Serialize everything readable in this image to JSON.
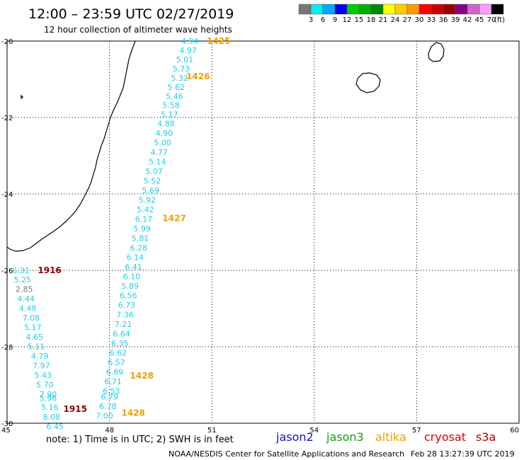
{
  "title": "12:00 – 23:59 UTC 02/27/2019",
  "subtitle": "12 hour collection of altimeter wave heights",
  "note": "note:  1) Time is in UTC;  2) SWH is in feet",
  "credit": "NOAA/NESDIS Center for Satellite Applications and Research",
  "timestamp": "Feb 28 13:27:39 UTC 2019",
  "satellites": [
    {
      "name": "jason2",
      "color": "#1010c8"
    },
    {
      "name": "jason3",
      "color": "#10a010"
    },
    {
      "name": "altika",
      "color": "#f0a000"
    },
    {
      "name": "cryosat",
      "color": "#e00000"
    },
    {
      "name": "s3a",
      "color": "#b00000"
    }
  ],
  "colorbar": {
    "labels": [
      "3",
      "6",
      "9",
      "12",
      "15",
      "18",
      "21",
      "24",
      "27",
      "30",
      "33",
      "36",
      "39",
      "42",
      "45",
      "70"
    ],
    "unit": "(ft)",
    "colors": [
      "#777777",
      "#00eeee",
      "#00aaff",
      "#0000ee",
      "#00cc00",
      "#00b000",
      "#008800",
      "#ffff00",
      "#ffcc00",
      "#ff9900",
      "#ff0000",
      "#cc0000",
      "#990000",
      "#880088",
      "#cc66cc",
      "#ff99ff",
      "#000000"
    ]
  },
  "chart_data": {
    "type": "scatter",
    "xlim": [
      45,
      60
    ],
    "ylim": [
      -30,
      -20
    ],
    "x_ticks": [
      "45",
      "48",
      "51",
      "54",
      "57",
      "60"
    ],
    "y_ticks": [
      "-20",
      "-22",
      "-24",
      "-26",
      "-28",
      "-30"
    ],
    "grid": true,
    "label_colors": {
      "low": "#22ccee",
      "mid": "#777777"
    },
    "track_labels": [
      {
        "text": "1425",
        "lon": 50.85,
        "lat": -20.0,
        "color": "#f0a000"
      },
      {
        "text": "1426",
        "lon": 50.25,
        "lat": -20.93,
        "color": "#f0a000"
      },
      {
        "text": "1427",
        "lon": 49.55,
        "lat": -24.64,
        "color": "#f0a000"
      },
      {
        "text": "1428",
        "lon": 48.6,
        "lat": -28.76,
        "color": "#f0a000"
      },
      {
        "text": "1428",
        "lon": 48.35,
        "lat": -29.73,
        "color": "#f0a000"
      },
      {
        "text": "1916",
        "lon": 45.9,
        "lat": -26.0,
        "color": "#8b0000"
      },
      {
        "text": "1915",
        "lon": 46.65,
        "lat": -29.63,
        "color": "#8b0000"
      }
    ],
    "values": [
      {
        "text": "4.94",
        "lon": 50.1,
        "lat": -20.0,
        "cls": "low"
      },
      {
        "text": "4.97",
        "lon": 50.05,
        "lat": -20.24,
        "cls": "low"
      },
      {
        "text": "5.01",
        "lon": 49.95,
        "lat": -20.48,
        "cls": "low"
      },
      {
        "text": "5.73",
        "lon": 49.85,
        "lat": -20.72,
        "cls": "low"
      },
      {
        "text": "5.32",
        "lon": 49.8,
        "lat": -20.96,
        "cls": "low"
      },
      {
        "text": "5.62",
        "lon": 49.7,
        "lat": -21.2,
        "cls": "low"
      },
      {
        "text": "5.46",
        "lon": 49.65,
        "lat": -21.44,
        "cls": "low"
      },
      {
        "text": "5.58",
        "lon": 49.55,
        "lat": -21.68,
        "cls": "low"
      },
      {
        "text": "5.17",
        "lon": 49.5,
        "lat": -21.92,
        "cls": "low"
      },
      {
        "text": "4.88",
        "lon": 49.4,
        "lat": -22.16,
        "cls": "low"
      },
      {
        "text": "4.90",
        "lon": 49.35,
        "lat": -22.41,
        "cls": "low"
      },
      {
        "text": "5.00",
        "lon": 49.3,
        "lat": -22.66,
        "cls": "low"
      },
      {
        "text": "4.77",
        "lon": 49.2,
        "lat": -22.91,
        "cls": "low"
      },
      {
        "text": "5.14",
        "lon": 49.15,
        "lat": -23.16,
        "cls": "low"
      },
      {
        "text": "5.07",
        "lon": 49.05,
        "lat": -23.41,
        "cls": "low"
      },
      {
        "text": "5.52",
        "lon": 49.0,
        "lat": -23.66,
        "cls": "low"
      },
      {
        "text": "5.69",
        "lon": 48.95,
        "lat": -23.91,
        "cls": "low"
      },
      {
        "text": "5.92",
        "lon": 48.85,
        "lat": -24.16,
        "cls": "low"
      },
      {
        "text": "5.42",
        "lon": 48.8,
        "lat": -24.41,
        "cls": "low"
      },
      {
        "text": "6.17",
        "lon": 48.75,
        "lat": -24.66,
        "cls": "low"
      },
      {
        "text": "5.99",
        "lon": 48.7,
        "lat": -24.91,
        "cls": "low"
      },
      {
        "text": "5.81",
        "lon": 48.65,
        "lat": -25.16,
        "cls": "low"
      },
      {
        "text": "6.28",
        "lon": 48.6,
        "lat": -25.41,
        "cls": "low"
      },
      {
        "text": "6.14",
        "lon": 48.5,
        "lat": -25.66,
        "cls": "low"
      },
      {
        "text": "6.41",
        "lon": 48.45,
        "lat": -25.91,
        "cls": "low"
      },
      {
        "text": "6.10",
        "lon": 48.4,
        "lat": -26.16,
        "cls": "low"
      },
      {
        "text": "5.89",
        "lon": 48.35,
        "lat": -26.41,
        "cls": "low"
      },
      {
        "text": "6.56",
        "lon": 48.3,
        "lat": -26.66,
        "cls": "low"
      },
      {
        "text": "6.73",
        "lon": 48.25,
        "lat": -26.91,
        "cls": "low"
      },
      {
        "text": "7.36",
        "lon": 48.2,
        "lat": -27.16,
        "cls": "low"
      },
      {
        "text": "7.21",
        "lon": 48.15,
        "lat": -27.41,
        "cls": "low"
      },
      {
        "text": "6.64",
        "lon": 48.1,
        "lat": -27.66,
        "cls": "low"
      },
      {
        "text": "6.35",
        "lon": 48.05,
        "lat": -27.91,
        "cls": "low"
      },
      {
        "text": "6.62",
        "lon": 48.0,
        "lat": -28.16,
        "cls": "low"
      },
      {
        "text": "6.57",
        "lon": 47.95,
        "lat": -28.41,
        "cls": "low"
      },
      {
        "text": "6.89",
        "lon": 47.9,
        "lat": -28.66,
        "cls": "low"
      },
      {
        "text": "6.71",
        "lon": 47.85,
        "lat": -28.91,
        "cls": "low"
      },
      {
        "text": "6.53",
        "lon": 47.8,
        "lat": -29.16,
        "cls": "low"
      },
      {
        "text": "6.79",
        "lon": 47.75,
        "lat": -29.31,
        "cls": "low"
      },
      {
        "text": "6.78",
        "lon": 47.7,
        "lat": -29.56,
        "cls": "low"
      },
      {
        "text": "7.00",
        "lon": 47.6,
        "lat": -29.81,
        "cls": "low"
      },
      {
        "text": "6.31",
        "lon": 45.15,
        "lat": -26.0,
        "cls": "low"
      },
      {
        "text": "5.25",
        "lon": 45.2,
        "lat": -26.24,
        "cls": "low"
      },
      {
        "text": "2.85",
        "lon": 45.25,
        "lat": -26.49,
        "cls": "mid"
      },
      {
        "text": "4.44",
        "lon": 45.3,
        "lat": -26.74,
        "cls": "low"
      },
      {
        "text": "4.48",
        "lon": 45.35,
        "lat": -26.99,
        "cls": "low"
      },
      {
        "text": "7.08",
        "lon": 45.45,
        "lat": -27.24,
        "cls": "low"
      },
      {
        "text": "5.17",
        "lon": 45.5,
        "lat": -27.49,
        "cls": "low"
      },
      {
        "text": "4.65",
        "lon": 45.55,
        "lat": -27.74,
        "cls": "low"
      },
      {
        "text": "5.11",
        "lon": 45.6,
        "lat": -27.99,
        "cls": "low"
      },
      {
        "text": "4.79",
        "lon": 45.7,
        "lat": -28.24,
        "cls": "low"
      },
      {
        "text": "7.97",
        "lon": 45.75,
        "lat": -28.49,
        "cls": "low"
      },
      {
        "text": "5.43",
        "lon": 45.8,
        "lat": -28.74,
        "cls": "low"
      },
      {
        "text": "5.70",
        "lon": 45.85,
        "lat": -28.99,
        "cls": "low"
      },
      {
        "text": "7.90",
        "lon": 45.95,
        "lat": -29.24,
        "cls": "low"
      },
      {
        "text": "5.96",
        "lon": 45.95,
        "lat": -29.34,
        "cls": "low"
      },
      {
        "text": "5.16",
        "lon": 46.0,
        "lat": -29.58,
        "cls": "low"
      },
      {
        "text": "8.08",
        "lon": 46.05,
        "lat": -29.83,
        "cls": "low"
      },
      {
        "text": "6.45",
        "lon": 46.15,
        "lat": -30.08,
        "cls": "low"
      }
    ]
  }
}
